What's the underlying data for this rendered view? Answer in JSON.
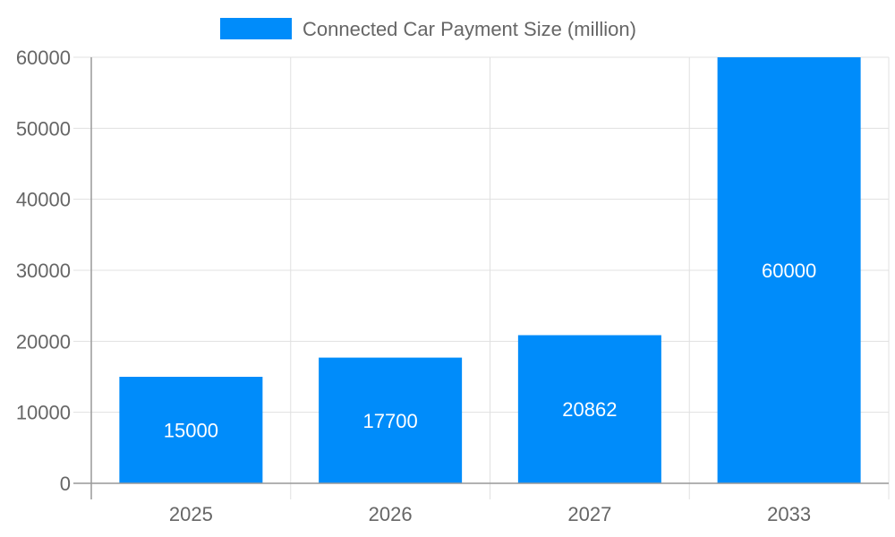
{
  "chart_data": {
    "type": "bar",
    "categories": [
      "2025",
      "2026",
      "2027",
      "2033"
    ],
    "series": [
      {
        "name": "Connected Car Payment Size (million)",
        "values": [
          15000,
          17700,
          20862,
          60000
        ],
        "color": "#008cfa"
      }
    ],
    "ylim": [
      0,
      60000
    ],
    "yticks": [
      0,
      10000,
      20000,
      30000,
      40000,
      50000,
      60000
    ],
    "grid": true,
    "legend": "top-center",
    "data_labels": true
  }
}
